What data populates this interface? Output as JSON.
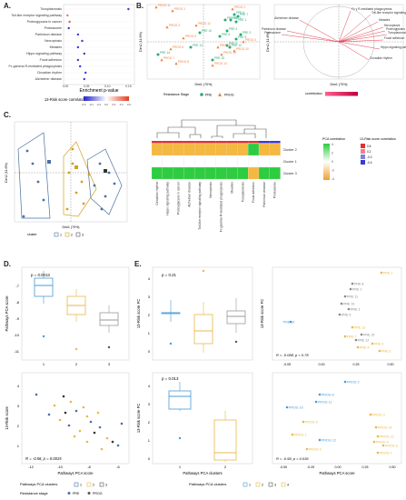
{
  "panels": {
    "A": "A.",
    "B": "B.",
    "C": "C.",
    "D": "D.",
    "E": "E."
  },
  "colors": {
    "pre": "#2e86c1",
    "prog": "#f0a030",
    "neg": "#3a3ad0",
    "pos": "#e03030",
    "green": "#2ecc40"
  },
  "panelA": {
    "pathways": [
      "Toxoplasmosis",
      "Toll-like receptor signaling pathway",
      "Proteoglycans in cancer",
      "Proteasome",
      "Parkinson disease",
      "Necroptosis",
      "Measles",
      "Hippo signaling pathway",
      "Focal adhesion",
      "Fc gamma R-mediated phagocytosis",
      "Circadian rhythm",
      "Alzheimer disease"
    ],
    "xlabel": "Enrichment p-value",
    "xticks": [
      "0.00",
      "0.05",
      "0.10",
      "0.15"
    ],
    "legend_title": "13-Risk score correlation",
    "legend_ticks": [
      "-0.6",
      "-0.4",
      "-0.2",
      "0.0",
      "0.2",
      "0.4",
      "0.6"
    ]
  },
  "panelB": {
    "ylabel": "Dim2 (11.6%)",
    "xlabel": "Dim1 (70%)",
    "legend_title": "Resistance Stage",
    "legend_pre": "PRE",
    "legend_prog": "PROG",
    "loadings_labels": [
      "Fc γ R-mediated phagocytosis",
      "Alzheimer disease",
      "Toll-like receptor signaling pathway",
      "Measles",
      "Necroptosis",
      "Proteoglycans in cancer",
      "Toxoplasmosis",
      "Focal adhesion",
      "Parkinson disease",
      "Proteasome",
      "Hippo signaling pathway",
      "Circadian rhythm"
    ],
    "contrib_label": "contribution",
    "pre_labels": [
      "PRE 1",
      "PRE 2",
      "PRE 3",
      "PRE 4",
      "PRE 5",
      "PRE 6",
      "PRE 7",
      "PRE 8",
      "PRE 9",
      "PRE 10",
      "PRE 11",
      "PRE 12",
      "PRE 13",
      "PRE 14",
      "PRE 15"
    ],
    "prog_labels": [
      "PROG 1",
      "PROG 2",
      "PROG 3",
      "PROG 4",
      "PROG 5",
      "PROG 6",
      "PROG 7",
      "PROG 8",
      "PROG 9",
      "PROG 10",
      "PROG 11",
      "PROG 12",
      "PROG 13",
      "PROG 14"
    ]
  },
  "panelC": {
    "ylabel": "Dim2 (11.6%)",
    "xlabel": "Dim1 (70%)",
    "cluster_title": "cluster",
    "clusters": [
      "1",
      "2",
      "3"
    ],
    "rows": [
      "Cluster 2",
      "Cluster 1",
      "Cluster 3"
    ],
    "columns": [
      "Circadian rhythm",
      "Hippo signaling pathway",
      "Proteoglycans in cancer",
      "Alzheimer disease",
      "Toll-like receptor signaling pathway",
      "Necroptosis",
      "Fc gamma R-mediated phagocytosis",
      "Measles",
      "Toxoplasmosis",
      "Focal adhesion",
      "Parkinson disease",
      "Proteasome"
    ],
    "pca_legend": "PCA correlation",
    "pca_ticks": [
      "4",
      "2",
      "0",
      "-2",
      "-4"
    ],
    "risk_legend": "13-Risk score correlation",
    "risk_ticks": [
      "0.6",
      "0.2",
      "-0.2",
      "-0.4"
    ]
  },
  "panelD": {
    "top": {
      "ylabel": "Pathways PCA score",
      "pvalue": "p = 0.0013",
      "yticks": [
        "-7",
        "-8",
        "-9",
        "-10",
        "-11"
      ],
      "xticks": [
        "1",
        "2",
        "3"
      ]
    },
    "bottom": {
      "ylabel": "13-Risk score",
      "xlabel": "Pathways PCA score",
      "stat": "R = -0.58, p = 0.0015",
      "yticks": [
        "4",
        "3",
        "2",
        "1"
      ],
      "xticks": [
        "-12",
        "-10",
        "-8",
        "-6"
      ]
    },
    "legend1_title": "Pathways PCA clusters",
    "legend1_items": [
      "1",
      "2",
      "3"
    ],
    "legend2_title": "Resistance stage",
    "legend2_items": [
      "PRE",
      "PROG"
    ]
  },
  "panelE": {
    "tl": {
      "ylabel": "13-Risk score FC",
      "pvalue": "p = 0.21",
      "yticks": [
        "4",
        "3",
        "2",
        "1",
        "0"
      ]
    },
    "bl": {
      "ylabel": "13-Risk score FC",
      "pvalue": "p = 0.013",
      "xlabel": "Pathways PCA clusters",
      "yticks": [
        "4",
        "3",
        "2",
        "1",
        "0"
      ],
      "xticks": [
        "1",
        "2"
      ]
    },
    "tr": {
      "ylabel": "13-Risk score FC",
      "stat": "R = -0.088, p = 0.78",
      "xticks": [
        "-0.05",
        "0.00",
        "0.25",
        "0.50"
      ],
      "labels": [
        "PRE 2",
        "PRE 8",
        "PRE 1",
        "PRE 11",
        "PRE 10",
        "PRE 3",
        "PRE 5",
        "PRE 14",
        "PRE 13",
        "PRE 7",
        "PRE 15",
        "PRE 12",
        "PRE 4",
        "PRE 6",
        "PRE 9"
      ]
    },
    "br": {
      "xlabel": "Pathways PCA score",
      "stat": "R = -0.58, p = 0.036",
      "xticks": [
        "-0.50",
        "-0.25",
        "0.00",
        "0.25",
        "0.50"
      ],
      "labels": [
        "PROG 2",
        "PROG 8",
        "PROG 11",
        "PROG 10",
        "PROG 3",
        "PROG 5",
        "PROG 14",
        "PROG 12",
        "PROG 1",
        "PROG 13",
        "PROG 4",
        "PROG 9",
        "PROG 6",
        "PROG 7"
      ]
    },
    "legend_title": "Pathways PCA clusters",
    "legend_items": [
      "1",
      "2",
      "3",
      "4"
    ]
  }
}
